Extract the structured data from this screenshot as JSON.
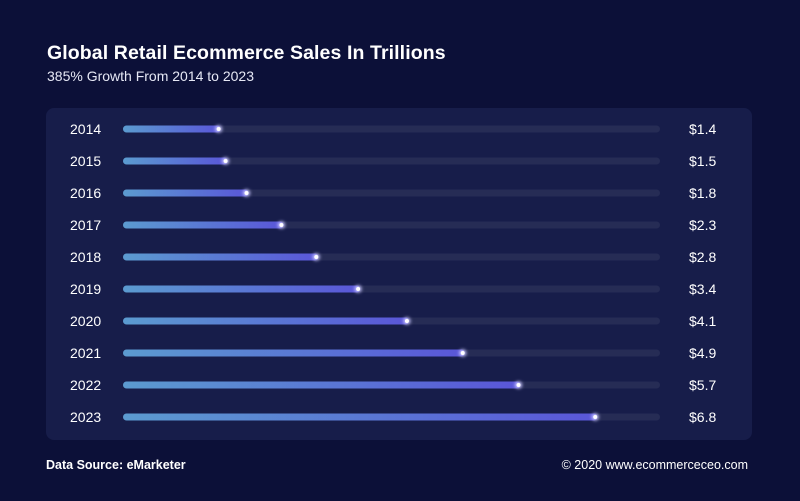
{
  "header": {
    "title": "Global Retail Ecommerce Sales In Trillions",
    "subtitle": "385% Growth From 2014 to 2023"
  },
  "footer": {
    "source": "Data Source: eMarketer",
    "copyright": "© 2020 www.ecommerceceo.com"
  },
  "colors": {
    "background": "#0c1038",
    "panel": "#171d4a",
    "track": "#262c55",
    "bar_start": "#5b9bd0",
    "bar_end": "#5a56d8",
    "dot": "#ffffff"
  },
  "chart_data": {
    "type": "bar",
    "orientation": "horizontal",
    "title": "Global Retail Ecommerce Sales In Trillions",
    "subtitle": "385% Growth From 2014 to 2023",
    "categories": [
      "2014",
      "2015",
      "2016",
      "2017",
      "2018",
      "2019",
      "2020",
      "2021",
      "2022",
      "2023"
    ],
    "values": [
      1.4,
      1.5,
      1.8,
      2.3,
      2.8,
      3.4,
      4.1,
      4.9,
      5.7,
      6.8
    ],
    "value_labels": [
      "$1.4",
      "$1.5",
      "$1.8",
      "$2.3",
      "$2.8",
      "$3.4",
      "$4.1",
      "$4.9",
      "$5.7",
      "$6.8"
    ],
    "xlim": [
      0,
      7.7
    ],
    "grid": false,
    "legend": "none"
  }
}
